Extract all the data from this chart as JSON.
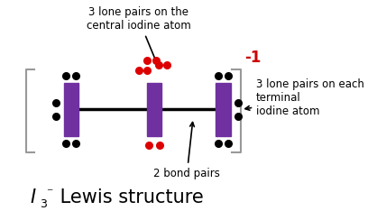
{
  "bg_color": "#ffffff",
  "bracket_color": "#999999",
  "iodine_color": "#7030a0",
  "black_dot_color": "#000000",
  "red_dot_color": "#dd0000",
  "text_color": "#000000",
  "red_text_color": "#cc0000",
  "annotation_central": "3 lone pairs on the\ncentral iodine atom",
  "annotation_terminal": "3 lone pairs on each\nterminal\niodine atom",
  "annotation_bond": "2 bond pairs",
  "charge_label": "-1",
  "title_color": "#000000"
}
